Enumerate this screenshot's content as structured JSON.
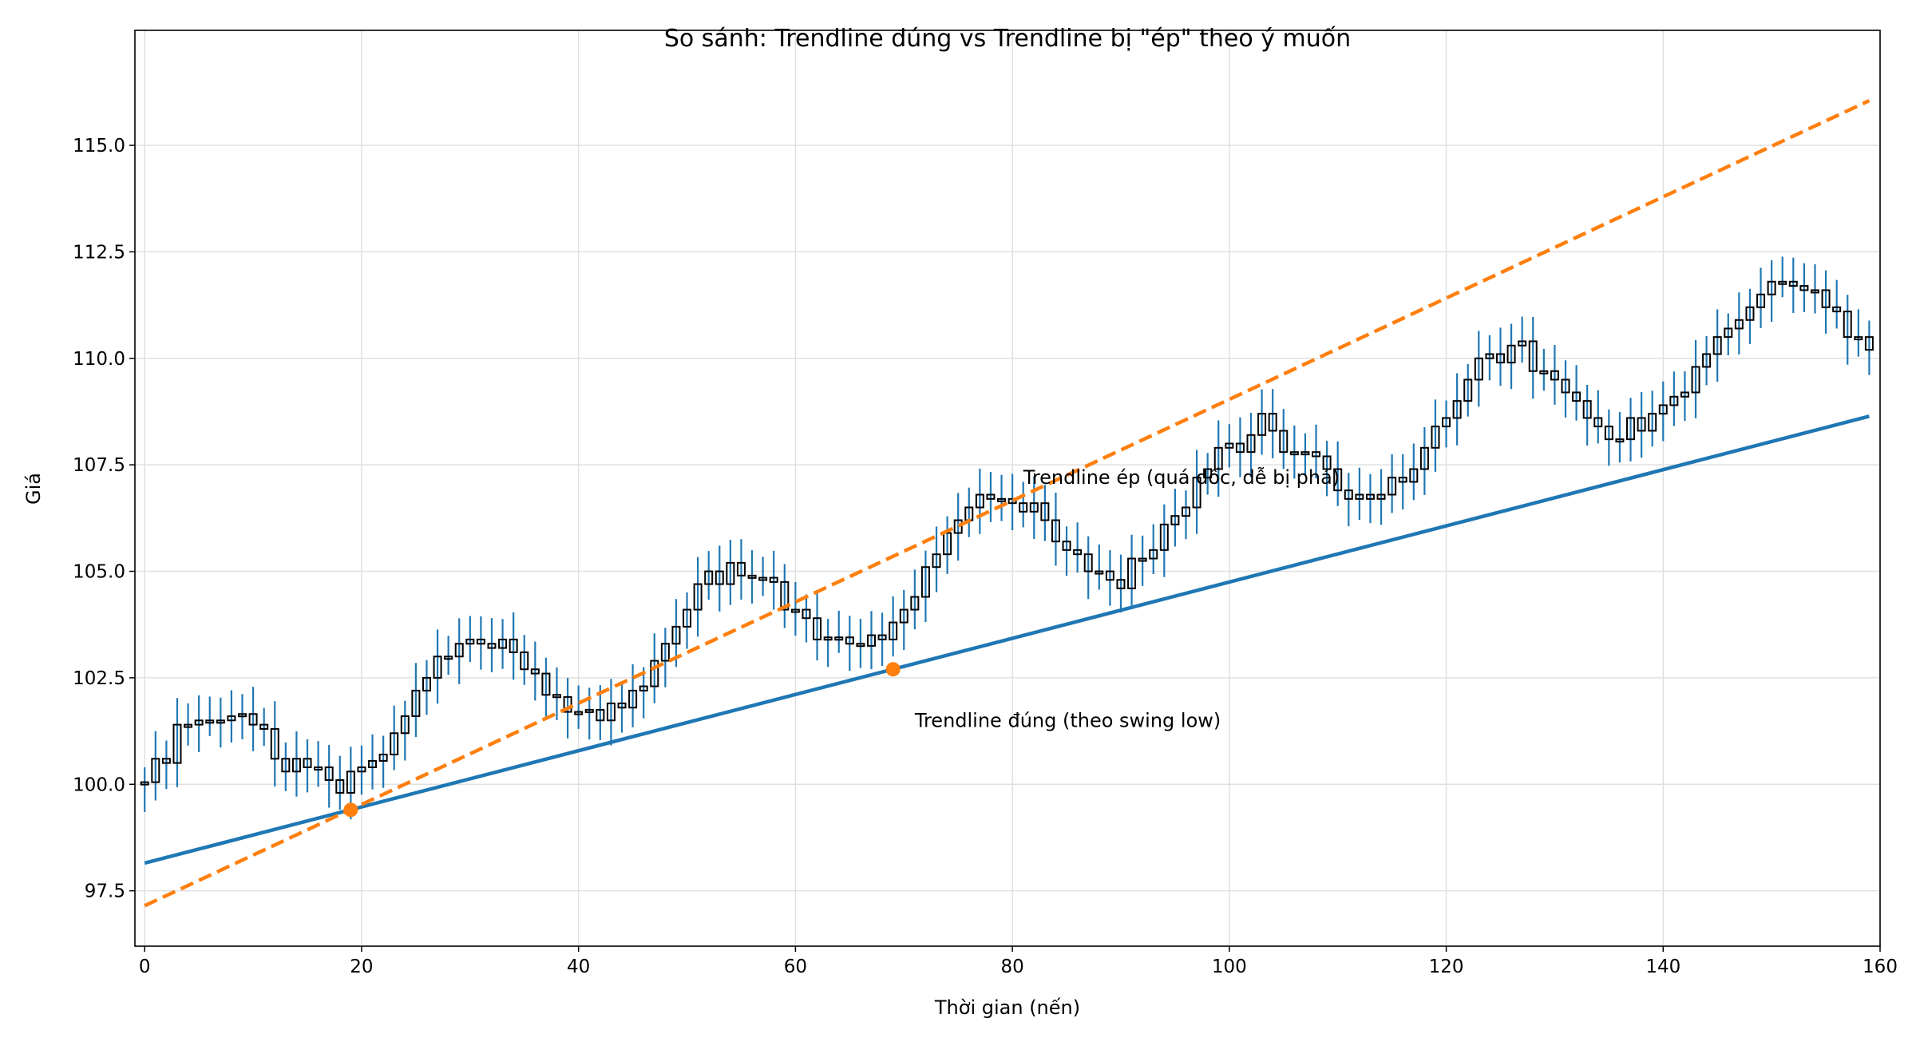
{
  "chart_data": {
    "type": "candlestick",
    "title": "So sánh: Trendline đúng vs Trendline bị \"ép\" theo ý muốn",
    "xlabel": "Thời gian (nến)",
    "ylabel": "Giá",
    "xlim": [
      -0.9,
      160
    ],
    "ylim": [
      96.2,
      117.7
    ],
    "xticks": [
      0,
      20,
      40,
      60,
      80,
      100,
      120,
      140,
      160
    ],
    "yticks": [
      "97.5",
      "100.0",
      "102.5",
      "105.0",
      "107.5",
      "110.0",
      "112.5",
      "115.0"
    ],
    "grid": true,
    "candle_close": [
      100.05,
      100.6,
      100.5,
      101.4,
      101.4,
      101.5,
      101.5,
      101.5,
      101.6,
      101.65,
      101.4,
      101.3,
      100.6,
      100.3,
      100.6,
      100.4,
      100.4,
      100.1,
      99.8,
      100.3,
      100.4,
      100.55,
      100.7,
      101.2,
      101.6,
      102.2,
      102.5,
      103.0,
      103.0,
      103.3,
      103.4,
      103.3,
      103.2,
      103.4,
      103.1,
      102.7,
      102.6,
      102.1,
      102.05,
      101.7,
      101.7,
      101.75,
      101.5,
      101.9,
      101.8,
      102.2,
      102.3,
      102.9,
      103.3,
      103.7,
      104.1,
      104.7,
      105.0,
      104.7,
      105.2,
      104.9,
      104.85,
      104.85,
      104.75,
      104.1,
      104.1,
      103.9,
      103.4,
      103.45,
      103.45,
      103.3,
      103.25,
      103.5,
      103.4,
      103.8,
      104.1,
      104.4,
      105.1,
      105.4,
      105.9,
      106.2,
      106.5,
      106.8,
      106.7,
      106.7,
      106.6,
      106.4,
      106.6,
      106.2,
      105.7,
      105.5,
      105.4,
      105.0,
      105.0,
      104.8,
      104.6,
      105.3,
      105.3,
      105.5,
      106.1,
      106.3,
      106.5,
      107.2,
      107.4,
      107.9,
      108.0,
      107.8,
      108.2,
      108.7,
      108.3,
      107.8,
      107.8,
      107.8,
      107.7,
      107.4,
      106.9,
      106.7,
      106.8,
      106.7,
      106.8,
      107.2,
      107.1,
      107.4,
      107.9,
      108.4,
      108.6,
      109.0,
      109.5,
      110.0,
      110.1,
      109.9,
      110.3,
      110.4,
      109.7,
      109.7,
      109.5,
      109.2,
      109.0,
      108.6,
      108.4,
      108.1,
      108.1,
      108.6,
      108.3,
      108.7,
      108.9,
      109.1,
      109.2,
      109.8,
      110.1,
      110.5,
      110.7,
      110.9,
      111.2,
      111.5,
      111.8,
      111.8,
      111.7,
      111.6,
      111.6,
      111.2,
      111.1,
      110.5,
      110.5,
      110.2
    ],
    "lines": [
      {
        "label": "Trendline đúng (theo swing low)",
        "style": "solid",
        "color": "#1f77b4",
        "start": [
          0,
          98.15
        ],
        "end": [
          159,
          108.64
        ],
        "label_at": [
          71,
          101.5
        ]
      },
      {
        "label": "Trendline ép (quá dốc, dễ bị phá)",
        "style": "dashed",
        "color": "#ff7f0e",
        "start": [
          0,
          97.15
        ],
        "end": [
          159,
          116.05
        ],
        "label_at": [
          81,
          107.2
        ]
      }
    ],
    "swing_points": [
      [
        19,
        99.4
      ],
      [
        69,
        102.7
      ]
    ],
    "colors": {
      "wick": "#1f77b4",
      "body": "#000000",
      "marker": "#ff7f0e",
      "grid": "#e0e0e0"
    }
  }
}
